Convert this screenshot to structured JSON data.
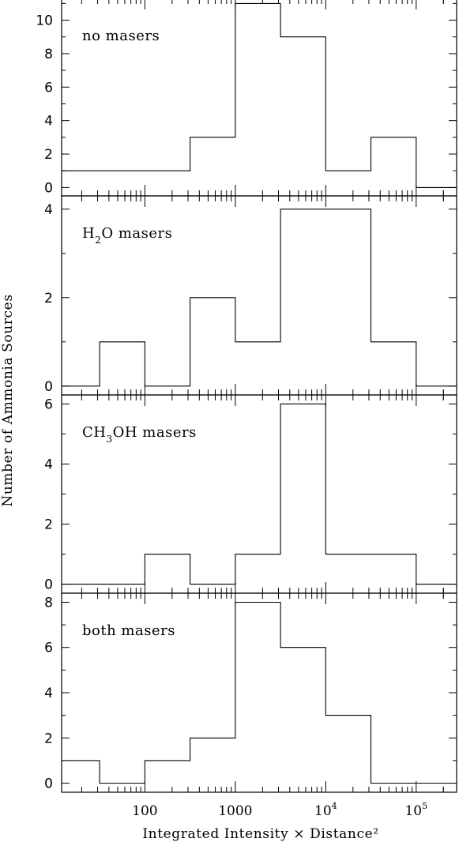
{
  "chart_data": {
    "type": "step-histogram",
    "xlabel": "Integrated Intensity × Distance²",
    "ylabel": "Number of Ammonia Sources",
    "xscale": "log",
    "xlim": [
      12,
      280000
    ],
    "xtick_labels": [
      {
        "value": 100,
        "base": "100",
        "exp": ""
      },
      {
        "value": 1000,
        "base": "1000",
        "exp": ""
      },
      {
        "value": 10000,
        "base": "10",
        "exp": "4"
      },
      {
        "value": 100000,
        "base": "10",
        "exp": "5"
      }
    ],
    "bin_edges": [
      12,
      31.6,
      100,
      316,
      1000,
      3160,
      10000,
      31600,
      100000,
      280000
    ],
    "panels": [
      {
        "label_parts": [
          {
            "t": "no masers",
            "sub": false
          }
        ],
        "ylim": [
          -0.5,
          11.3
        ],
        "yticks": [
          0,
          2,
          4,
          6,
          8,
          10
        ],
        "values": [
          1,
          1,
          1,
          3,
          11,
          9,
          1,
          3,
          0
        ]
      },
      {
        "label_parts": [
          {
            "t": "H",
            "sub": false
          },
          {
            "t": "2",
            "sub": true
          },
          {
            "t": "O masers",
            "sub": false
          }
        ],
        "ylim": [
          -0.2,
          4.3
        ],
        "yticks": [
          0,
          2,
          4
        ],
        "values": [
          0,
          1,
          0,
          2,
          1,
          4,
          4,
          1,
          0
        ]
      },
      {
        "label_parts": [
          {
            "t": "CH",
            "sub": false
          },
          {
            "t": "3",
            "sub": true
          },
          {
            "t": "OH masers",
            "sub": false
          }
        ],
        "ylim": [
          -0.3,
          6.3
        ],
        "yticks": [
          0,
          2,
          4,
          6
        ],
        "values": [
          0,
          0,
          1,
          0,
          1,
          6,
          1,
          1,
          0
        ]
      },
      {
        "label_parts": [
          {
            "t": "both masers",
            "sub": false
          }
        ],
        "ylim": [
          -0.4,
          8.4
        ],
        "yticks": [
          0,
          2,
          4,
          6,
          8
        ],
        "values": [
          1,
          0,
          1,
          2,
          8,
          6,
          3,
          0,
          0
        ]
      }
    ]
  }
}
